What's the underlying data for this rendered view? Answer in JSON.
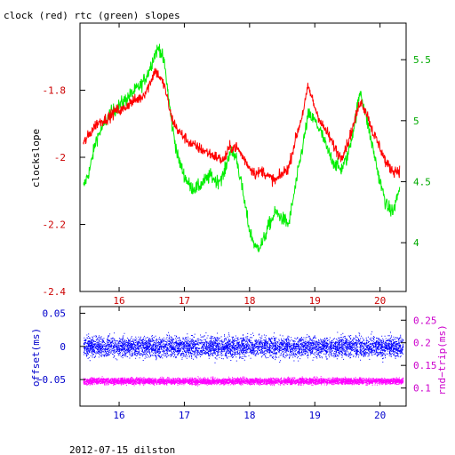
{
  "title": "clock (red) rtc (green) slopes",
  "footer": "2012-07-15 dilston",
  "colors": {
    "clock": "#ff0000",
    "rtc": "#00ee00",
    "offset": "#0000ff",
    "roundtrip": "#ff00ff",
    "left_axis_top": "#cc0000",
    "right_axis_top": "#00aa00",
    "bottom_axis": "#0000cc",
    "left_axis_bottom": "#0000cc",
    "right_axis_bottom": "#cc00cc"
  },
  "chart_data": [
    {
      "type": "line",
      "ylabel": "clockslope",
      "xlim": [
        15.4,
        20.4
      ],
      "xticks": [
        "16",
        "17",
        "18",
        "19",
        "20"
      ],
      "xtick_values": [
        16,
        17,
        18,
        19,
        20
      ],
      "ylim": [
        -2.4,
        -1.6
      ],
      "yticks": [
        "-1.8",
        "-2",
        "-2.2",
        "-2.4"
      ],
      "ytick_values": [
        -1.8,
        -2.0,
        -2.2,
        -2.4
      ],
      "y2lim": [
        3.6,
        5.8
      ],
      "y2ticks": [
        "5.5",
        "5",
        "4.5",
        "4"
      ],
      "y2tick_values": [
        5.5,
        5.0,
        4.5,
        4.0
      ],
      "series": [
        {
          "axis": "left",
          "x": [
            15.45,
            15.55,
            15.65,
            15.75,
            15.85,
            15.95,
            16.05,
            16.15,
            16.25,
            16.35,
            16.45,
            16.55,
            16.62,
            16.7,
            16.8,
            16.9,
            17.0,
            17.1,
            17.2,
            17.3,
            17.4,
            17.5,
            17.6,
            17.7,
            17.8,
            17.9,
            18.0,
            18.1,
            18.2,
            18.3,
            18.4,
            18.5,
            18.6,
            18.7,
            18.8,
            18.9,
            19.0,
            19.1,
            19.2,
            19.3,
            19.4,
            19.5,
            19.6,
            19.7,
            19.8,
            19.9,
            20.0,
            20.1,
            20.2,
            20.3
          ],
          "y": [
            -1.96,
            -1.93,
            -1.9,
            -1.89,
            -1.88,
            -1.86,
            -1.86,
            -1.84,
            -1.83,
            -1.82,
            -1.79,
            -1.74,
            -1.76,
            -1.79,
            -1.88,
            -1.92,
            -1.94,
            -1.96,
            -1.97,
            -1.98,
            -1.99,
            -2.0,
            -2.01,
            -1.97,
            -1.97,
            -2.0,
            -2.03,
            -2.05,
            -2.04,
            -2.06,
            -2.07,
            -2.05,
            -2.03,
            -1.95,
            -1.88,
            -1.79,
            -1.85,
            -1.9,
            -1.93,
            -1.97,
            -2.0,
            -1.96,
            -1.9,
            -1.83,
            -1.87,
            -1.93,
            -1.97,
            -2.02,
            -2.04,
            -2.04
          ]
        },
        {
          "axis": "right",
          "x": [
            15.45,
            15.55,
            15.65,
            15.75,
            15.85,
            15.95,
            16.05,
            16.15,
            16.25,
            16.35,
            16.45,
            16.55,
            16.62,
            16.7,
            16.8,
            16.9,
            17.0,
            17.1,
            17.2,
            17.3,
            17.4,
            17.5,
            17.6,
            17.7,
            17.8,
            17.9,
            18.0,
            18.1,
            18.2,
            18.3,
            18.4,
            18.5,
            18.6,
            18.7,
            18.8,
            18.9,
            19.0,
            19.1,
            19.2,
            19.3,
            19.4,
            19.5,
            19.6,
            19.7,
            19.8,
            19.9,
            20.0,
            20.1,
            20.2,
            20.3
          ],
          "y": [
            4.45,
            4.6,
            4.85,
            4.95,
            5.05,
            5.1,
            5.15,
            5.2,
            5.25,
            5.3,
            5.4,
            5.55,
            5.6,
            5.45,
            5.0,
            4.7,
            4.55,
            4.45,
            4.45,
            4.5,
            4.55,
            4.5,
            4.55,
            4.75,
            4.7,
            4.4,
            4.1,
            3.95,
            4.0,
            4.15,
            4.25,
            4.2,
            4.15,
            4.45,
            4.75,
            5.05,
            5.0,
            4.9,
            4.75,
            4.65,
            4.6,
            4.7,
            4.95,
            5.25,
            5.0,
            4.75,
            4.5,
            4.3,
            4.25,
            4.45
          ]
        }
      ]
    },
    {
      "type": "scatter",
      "ylabel": "offset(ms)",
      "y2label": "rnd−trip(ms)",
      "xlim": [
        15.4,
        20.4
      ],
      "xticks": [
        "16",
        "17",
        "18",
        "19",
        "20"
      ],
      "xtick_values": [
        16,
        17,
        18,
        19,
        20
      ],
      "ylim": [
        -0.09,
        0.06
      ],
      "yticks": [
        "0.05",
        "0",
        "−0.05"
      ],
      "ytick_values": [
        0.05,
        0.0,
        -0.05
      ],
      "y2lim": [
        0.06,
        0.28
      ],
      "y2ticks": [
        "0.25",
        "0.2",
        "0.15",
        "0.1"
      ],
      "y2tick_values": [
        0.25,
        0.2,
        0.15,
        0.1
      ],
      "series": [
        {
          "axis": "left",
          "x_range": [
            15.45,
            20.35
          ],
          "center": 0.0,
          "spread": 0.035
        },
        {
          "axis": "right",
          "x_range": [
            15.45,
            20.35
          ],
          "center": 0.116,
          "spread": 0.016
        }
      ]
    }
  ]
}
